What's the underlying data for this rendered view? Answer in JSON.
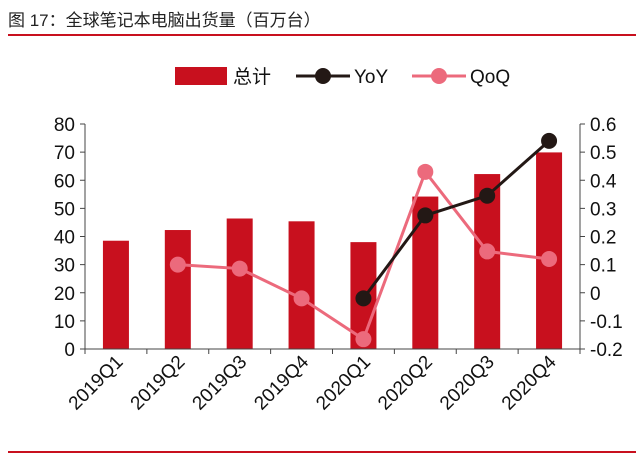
{
  "figure": {
    "title": "图 17：全球笔记本电脑出货量（百万台）"
  },
  "colors": {
    "bar": "#c8101e",
    "yoy": "#231815",
    "qoq": "#ec6a7c",
    "rule": "#c8101e"
  },
  "chart_data": {
    "type": "bar",
    "title": "",
    "xlabel": "",
    "ylabel": "",
    "categories": [
      "2019Q1",
      "2019Q2",
      "2019Q3",
      "2019Q4",
      "2020Q1",
      "2020Q2",
      "2020Q3",
      "2020Q4"
    ],
    "series": [
      {
        "name": "总计",
        "type": "bar",
        "axis": "left",
        "values": [
          38.5,
          42.3,
          46.4,
          45.4,
          38.0,
          54.2,
          62.2,
          69.9
        ]
      },
      {
        "name": "YoY",
        "type": "line",
        "axis": "right",
        "values": [
          null,
          null,
          null,
          null,
          -0.02,
          0.275,
          0.345,
          0.54
        ]
      },
      {
        "name": "QoQ",
        "type": "line",
        "axis": "right",
        "values": [
          null,
          0.1,
          0.086,
          -0.02,
          -0.165,
          0.43,
          0.147,
          0.12
        ]
      }
    ],
    "ylim": [
      0,
      80
    ],
    "yticks": [
      "0",
      "10",
      "20",
      "30",
      "40",
      "50",
      "60",
      "70",
      "80"
    ],
    "y2lim": [
      -0.2,
      0.6
    ],
    "y2ticks": [
      "-0.2",
      "-0.1",
      "0",
      "0.1",
      "0.2",
      "0.3",
      "0.4",
      "0.5",
      "0.6"
    ],
    "grid": false,
    "legend": "top-center"
  }
}
